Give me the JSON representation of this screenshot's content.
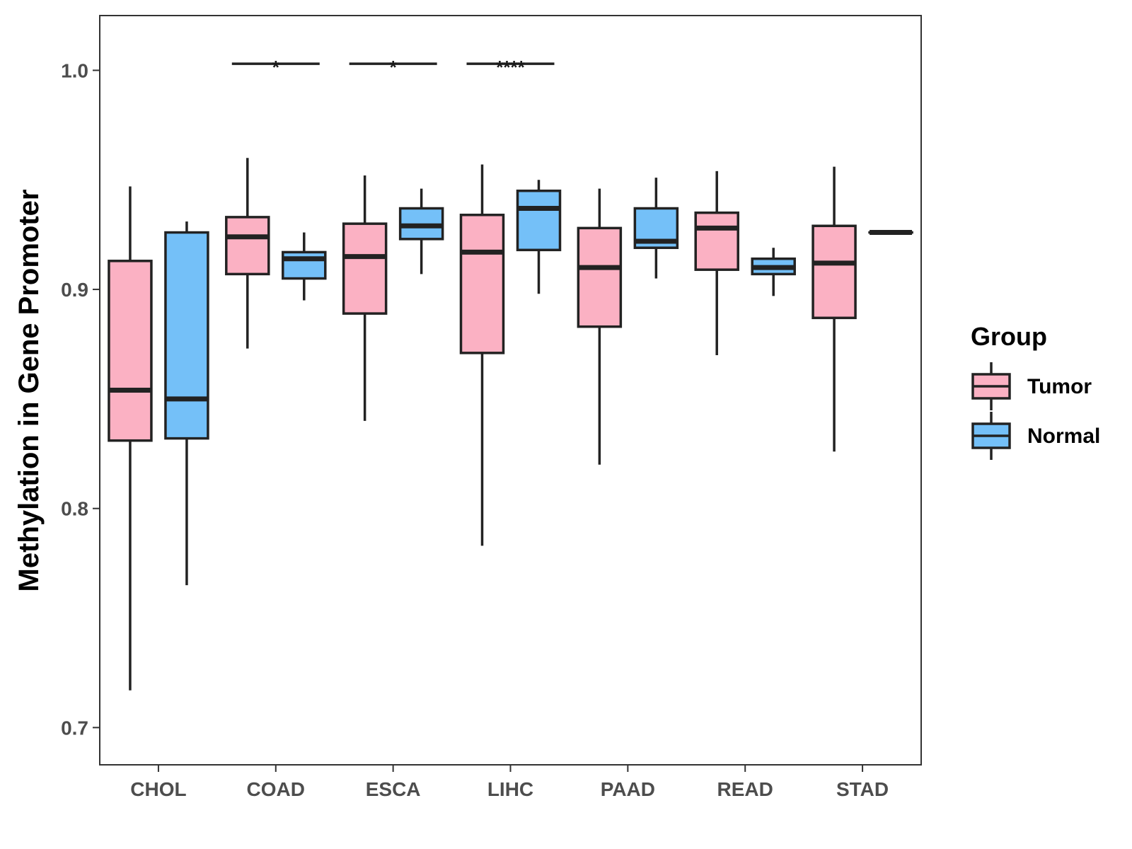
{
  "chart_data": {
    "type": "boxplot",
    "title": "",
    "xlabel": "",
    "ylabel": "Methylation in Gene Promoter",
    "ylim": [
      0.683,
      1.025
    ],
    "yticks": [
      0.7,
      0.8,
      0.9,
      1.0
    ],
    "ytick_labels": [
      "0.7",
      "0.8",
      "0.9",
      "1.0"
    ],
    "grid": false,
    "categories": [
      "CHOL",
      "COAD",
      "ESCA",
      "LIHC",
      "PAAD",
      "READ",
      "STAD"
    ],
    "legend": {
      "title": "Group",
      "position": "right",
      "entries": [
        {
          "name": "Tumor",
          "color": "#FBB1C3"
        },
        {
          "name": "Normal",
          "color": "#74C0F8"
        }
      ]
    },
    "series": [
      {
        "name": "Tumor",
        "color": "#FBB1C3",
        "boxes": [
          {
            "category": "CHOL",
            "whisker_low": 0.717,
            "q1": 0.831,
            "median": 0.854,
            "q3": 0.913,
            "whisker_high": 0.947
          },
          {
            "category": "COAD",
            "whisker_low": 0.873,
            "q1": 0.907,
            "median": 0.924,
            "q3": 0.933,
            "whisker_high": 0.96
          },
          {
            "category": "ESCA",
            "whisker_low": 0.84,
            "q1": 0.889,
            "median": 0.915,
            "q3": 0.93,
            "whisker_high": 0.952
          },
          {
            "category": "LIHC",
            "whisker_low": 0.783,
            "q1": 0.871,
            "median": 0.917,
            "q3": 0.934,
            "whisker_high": 0.957
          },
          {
            "category": "PAAD",
            "whisker_low": 0.82,
            "q1": 0.883,
            "median": 0.91,
            "q3": 0.928,
            "whisker_high": 0.946
          },
          {
            "category": "READ",
            "whisker_low": 0.87,
            "q1": 0.909,
            "median": 0.928,
            "q3": 0.935,
            "whisker_high": 0.954
          },
          {
            "category": "STAD",
            "whisker_low": 0.826,
            "q1": 0.887,
            "median": 0.912,
            "q3": 0.929,
            "whisker_high": 0.956
          }
        ]
      },
      {
        "name": "Normal",
        "color": "#74C0F8",
        "boxes": [
          {
            "category": "CHOL",
            "whisker_low": 0.765,
            "q1": 0.832,
            "median": 0.85,
            "q3": 0.926,
            "whisker_high": 0.931
          },
          {
            "category": "COAD",
            "whisker_low": 0.895,
            "q1": 0.905,
            "median": 0.914,
            "q3": 0.917,
            "whisker_high": 0.926
          },
          {
            "category": "ESCA",
            "whisker_low": 0.907,
            "q1": 0.923,
            "median": 0.929,
            "q3": 0.937,
            "whisker_high": 0.946
          },
          {
            "category": "LIHC",
            "whisker_low": 0.898,
            "q1": 0.918,
            "median": 0.937,
            "q3": 0.945,
            "whisker_high": 0.95
          },
          {
            "category": "PAAD",
            "whisker_low": 0.905,
            "q1": 0.919,
            "median": 0.922,
            "q3": 0.937,
            "whisker_high": 0.951
          },
          {
            "category": "READ",
            "whisker_low": 0.897,
            "q1": 0.907,
            "median": 0.91,
            "q3": 0.914,
            "whisker_high": 0.919
          },
          {
            "category": "STAD",
            "whisker_low": 0.926,
            "q1": 0.926,
            "median": 0.926,
            "q3": 0.926,
            "whisker_high": 0.926
          }
        ]
      }
    ],
    "significance": [
      {
        "category": "COAD",
        "label": "*",
        "y": 1.003
      },
      {
        "category": "ESCA",
        "label": "*",
        "y": 1.003
      },
      {
        "category": "LIHC",
        "label": "****",
        "y": 1.003
      }
    ]
  }
}
